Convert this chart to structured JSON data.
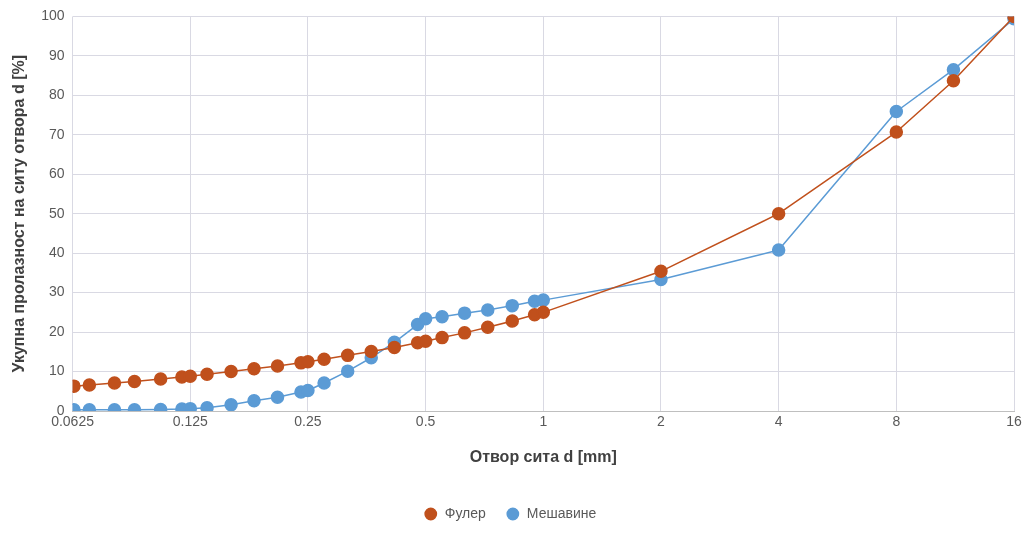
{
  "chart_data": {
    "type": "line",
    "xlabel": "Отвор сита d [mm]",
    "ylabel": "Укупна пролазност на ситу отвора d [%]",
    "x": [
      0.063,
      0.069,
      0.08,
      0.09,
      0.105,
      0.119,
      0.125,
      0.138,
      0.159,
      0.182,
      0.209,
      0.24,
      0.25,
      0.275,
      0.316,
      0.363,
      0.416,
      0.477,
      0.5,
      0.551,
      0.629,
      0.721,
      0.833,
      0.95,
      1,
      2,
      4,
      8,
      11.2,
      16
    ],
    "series": [
      {
        "name": "Фулер",
        "color": "#c0501c",
        "values": [
          6.3,
          6.6,
          7.1,
          7.5,
          8.1,
          8.6,
          8.8,
          9.3,
          10.0,
          10.7,
          11.4,
          12.2,
          12.5,
          13.1,
          14.1,
          15.1,
          16.1,
          17.3,
          17.7,
          18.6,
          19.8,
          21.2,
          22.8,
          24.4,
          25,
          35.4,
          50,
          70.7,
          83.7,
          100
        ]
      },
      {
        "name": "Мешавине",
        "color": "#5b9bd5",
        "values": [
          0.3,
          0.3,
          0.3,
          0.3,
          0.4,
          0.5,
          0.6,
          0.8,
          1.6,
          2.6,
          3.5,
          4.8,
          5.2,
          7.1,
          10.1,
          13.5,
          17.4,
          21.9,
          23.4,
          23.9,
          24.8,
          25.6,
          26.7,
          27.8,
          28.1,
          33.3,
          40.8,
          75.9,
          86.5,
          99.4
        ]
      }
    ],
    "log": "x",
    "xlim": [
      0.0625,
      16
    ],
    "xticks": [
      0.0625,
      0.125,
      0.25,
      0.5,
      1,
      2,
      4,
      8,
      16
    ],
    "ylim": [
      0,
      100
    ],
    "yticks": [
      0,
      10,
      20,
      30,
      40,
      50,
      60,
      70,
      80,
      90,
      100
    ],
    "grid": true,
    "legend": "bottom",
    "marker": "circle",
    "line_style": "solid"
  }
}
